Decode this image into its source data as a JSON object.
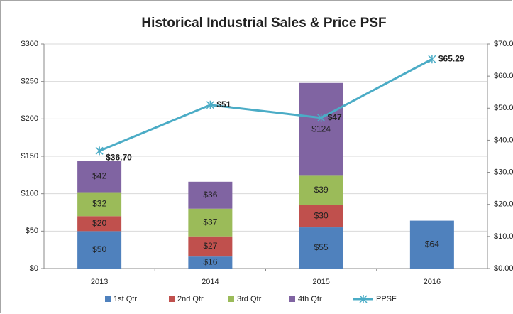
{
  "chart_data": {
    "type": "bar",
    "stacked": true,
    "title": "Historical Industrial Sales & Price PSF",
    "categories": [
      "2013",
      "2014",
      "2015",
      "2016"
    ],
    "series": [
      {
        "name": "1st Qtr",
        "color": "#4f81bd",
        "values": [
          50,
          16,
          55,
          64
        ],
        "value_labels": [
          "$50",
          "$16",
          "$55",
          "$64"
        ]
      },
      {
        "name": "2nd Qtr",
        "color": "#c0504d",
        "values": [
          20,
          27,
          30,
          null
        ],
        "value_labels": [
          "$20",
          "$27",
          "$30",
          null
        ]
      },
      {
        "name": "3rd Qtr",
        "color": "#9bbb59",
        "values": [
          32,
          37,
          39,
          null
        ],
        "value_labels": [
          "$32",
          "$37",
          "$39",
          null
        ]
      },
      {
        "name": "4th Qtr",
        "color": "#8064a2",
        "values": [
          42,
          36,
          124,
          null
        ],
        "value_labels": [
          "$42",
          "$36",
          "$124",
          null
        ]
      },
      {
        "name": "PPSF",
        "type": "line",
        "axis": "y2",
        "color": "#4bacc6",
        "values": [
          36.7,
          51,
          47,
          65.29
        ],
        "value_labels": [
          "$36.70",
          "$51",
          "$47",
          "$65.29"
        ]
      }
    ],
    "ylim": [
      0,
      300
    ],
    "yticks": [
      {
        "value": 0,
        "label": "$0"
      },
      {
        "value": 50,
        "label": "$50"
      },
      {
        "value": 100,
        "label": "$100"
      },
      {
        "value": 150,
        "label": "$150"
      },
      {
        "value": 200,
        "label": "$200"
      },
      {
        "value": 250,
        "label": "$250"
      },
      {
        "value": 300,
        "label": "$300"
      }
    ],
    "y2lim": [
      0,
      70
    ],
    "y2ticks": [
      {
        "value": 0,
        "label": "$0.00"
      },
      {
        "value": 10,
        "label": "$10.00"
      },
      {
        "value": 20,
        "label": "$20.00"
      },
      {
        "value": 30,
        "label": "$30.00"
      },
      {
        "value": 40,
        "label": "$40.00"
      },
      {
        "value": 50,
        "label": "$50.00"
      },
      {
        "value": 60,
        "label": "$60.00"
      },
      {
        "value": 70,
        "label": "$70.00"
      }
    ],
    "grid": true,
    "legend": "bottom"
  }
}
